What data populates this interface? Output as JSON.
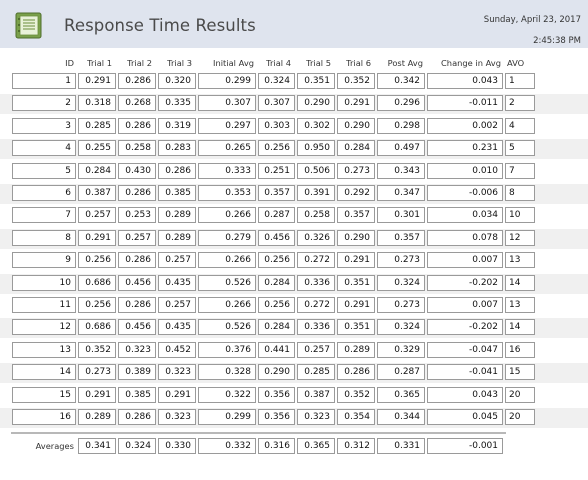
{
  "report": {
    "title": "Response Time Results",
    "date": "Sunday, April 23, 2017",
    "time": "2:45:38 PM",
    "icon": "report-icon"
  },
  "columns": [
    "ID",
    "Trial 1",
    "Trial 2",
    "Trial 3",
    "Initial Avg",
    "Trial 4",
    "Trial 5",
    "Trial 6",
    "Post Avg",
    "Change in Avg",
    "AVO"
  ],
  "rows": [
    [
      "1",
      "0.291",
      "0.286",
      "0.320",
      "0.299",
      "0.324",
      "0.351",
      "0.352",
      "0.342",
      "0.043",
      "1"
    ],
    [
      "2",
      "0.318",
      "0.268",
      "0.335",
      "0.307",
      "0.307",
      "0.290",
      "0.291",
      "0.296",
      "-0.011",
      "2"
    ],
    [
      "3",
      "0.285",
      "0.286",
      "0.319",
      "0.297",
      "0.303",
      "0.302",
      "0.290",
      "0.298",
      "0.002",
      "4"
    ],
    [
      "4",
      "0.255",
      "0.258",
      "0.283",
      "0.265",
      "0.256",
      "0.950",
      "0.284",
      "0.497",
      "0.231",
      "5"
    ],
    [
      "5",
      "0.284",
      "0.430",
      "0.286",
      "0.333",
      "0.251",
      "0.506",
      "0.273",
      "0.343",
      "0.010",
      "7"
    ],
    [
      "6",
      "0.387",
      "0.286",
      "0.385",
      "0.353",
      "0.357",
      "0.391",
      "0.292",
      "0.347",
      "-0.006",
      "8"
    ],
    [
      "7",
      "0.257",
      "0.253",
      "0.289",
      "0.266",
      "0.287",
      "0.258",
      "0.357",
      "0.301",
      "0.034",
      "10"
    ],
    [
      "8",
      "0.291",
      "0.257",
      "0.289",
      "0.279",
      "0.456",
      "0.326",
      "0.290",
      "0.357",
      "0.078",
      "12"
    ],
    [
      "9",
      "0.256",
      "0.286",
      "0.257",
      "0.266",
      "0.256",
      "0.272",
      "0.291",
      "0.273",
      "0.007",
      "13"
    ],
    [
      "10",
      "0.686",
      "0.456",
      "0.435",
      "0.526",
      "0.284",
      "0.336",
      "0.351",
      "0.324",
      "-0.202",
      "14"
    ],
    [
      "11",
      "0.256",
      "0.286",
      "0.257",
      "0.266",
      "0.256",
      "0.272",
      "0.291",
      "0.273",
      "0.007",
      "13"
    ],
    [
      "12",
      "0.686",
      "0.456",
      "0.435",
      "0.526",
      "0.284",
      "0.336",
      "0.351",
      "0.324",
      "-0.202",
      "14"
    ],
    [
      "13",
      "0.352",
      "0.323",
      "0.452",
      "0.376",
      "0.441",
      "0.257",
      "0.289",
      "0.329",
      "-0.047",
      "16"
    ],
    [
      "14",
      "0.273",
      "0.389",
      "0.323",
      "0.328",
      "0.290",
      "0.285",
      "0.286",
      "0.287",
      "-0.041",
      "15"
    ],
    [
      "15",
      "0.291",
      "0.385",
      "0.291",
      "0.322",
      "0.356",
      "0.387",
      "0.352",
      "0.365",
      "0.043",
      "20"
    ],
    [
      "16",
      "0.289",
      "0.286",
      "0.323",
      "0.299",
      "0.356",
      "0.323",
      "0.354",
      "0.344",
      "0.045",
      "20"
    ]
  ],
  "averages": {
    "label": "Averages",
    "values": [
      "0.341",
      "0.324",
      "0.330",
      "0.332",
      "0.316",
      "0.365",
      "0.312",
      "0.331",
      "-0.001"
    ]
  }
}
